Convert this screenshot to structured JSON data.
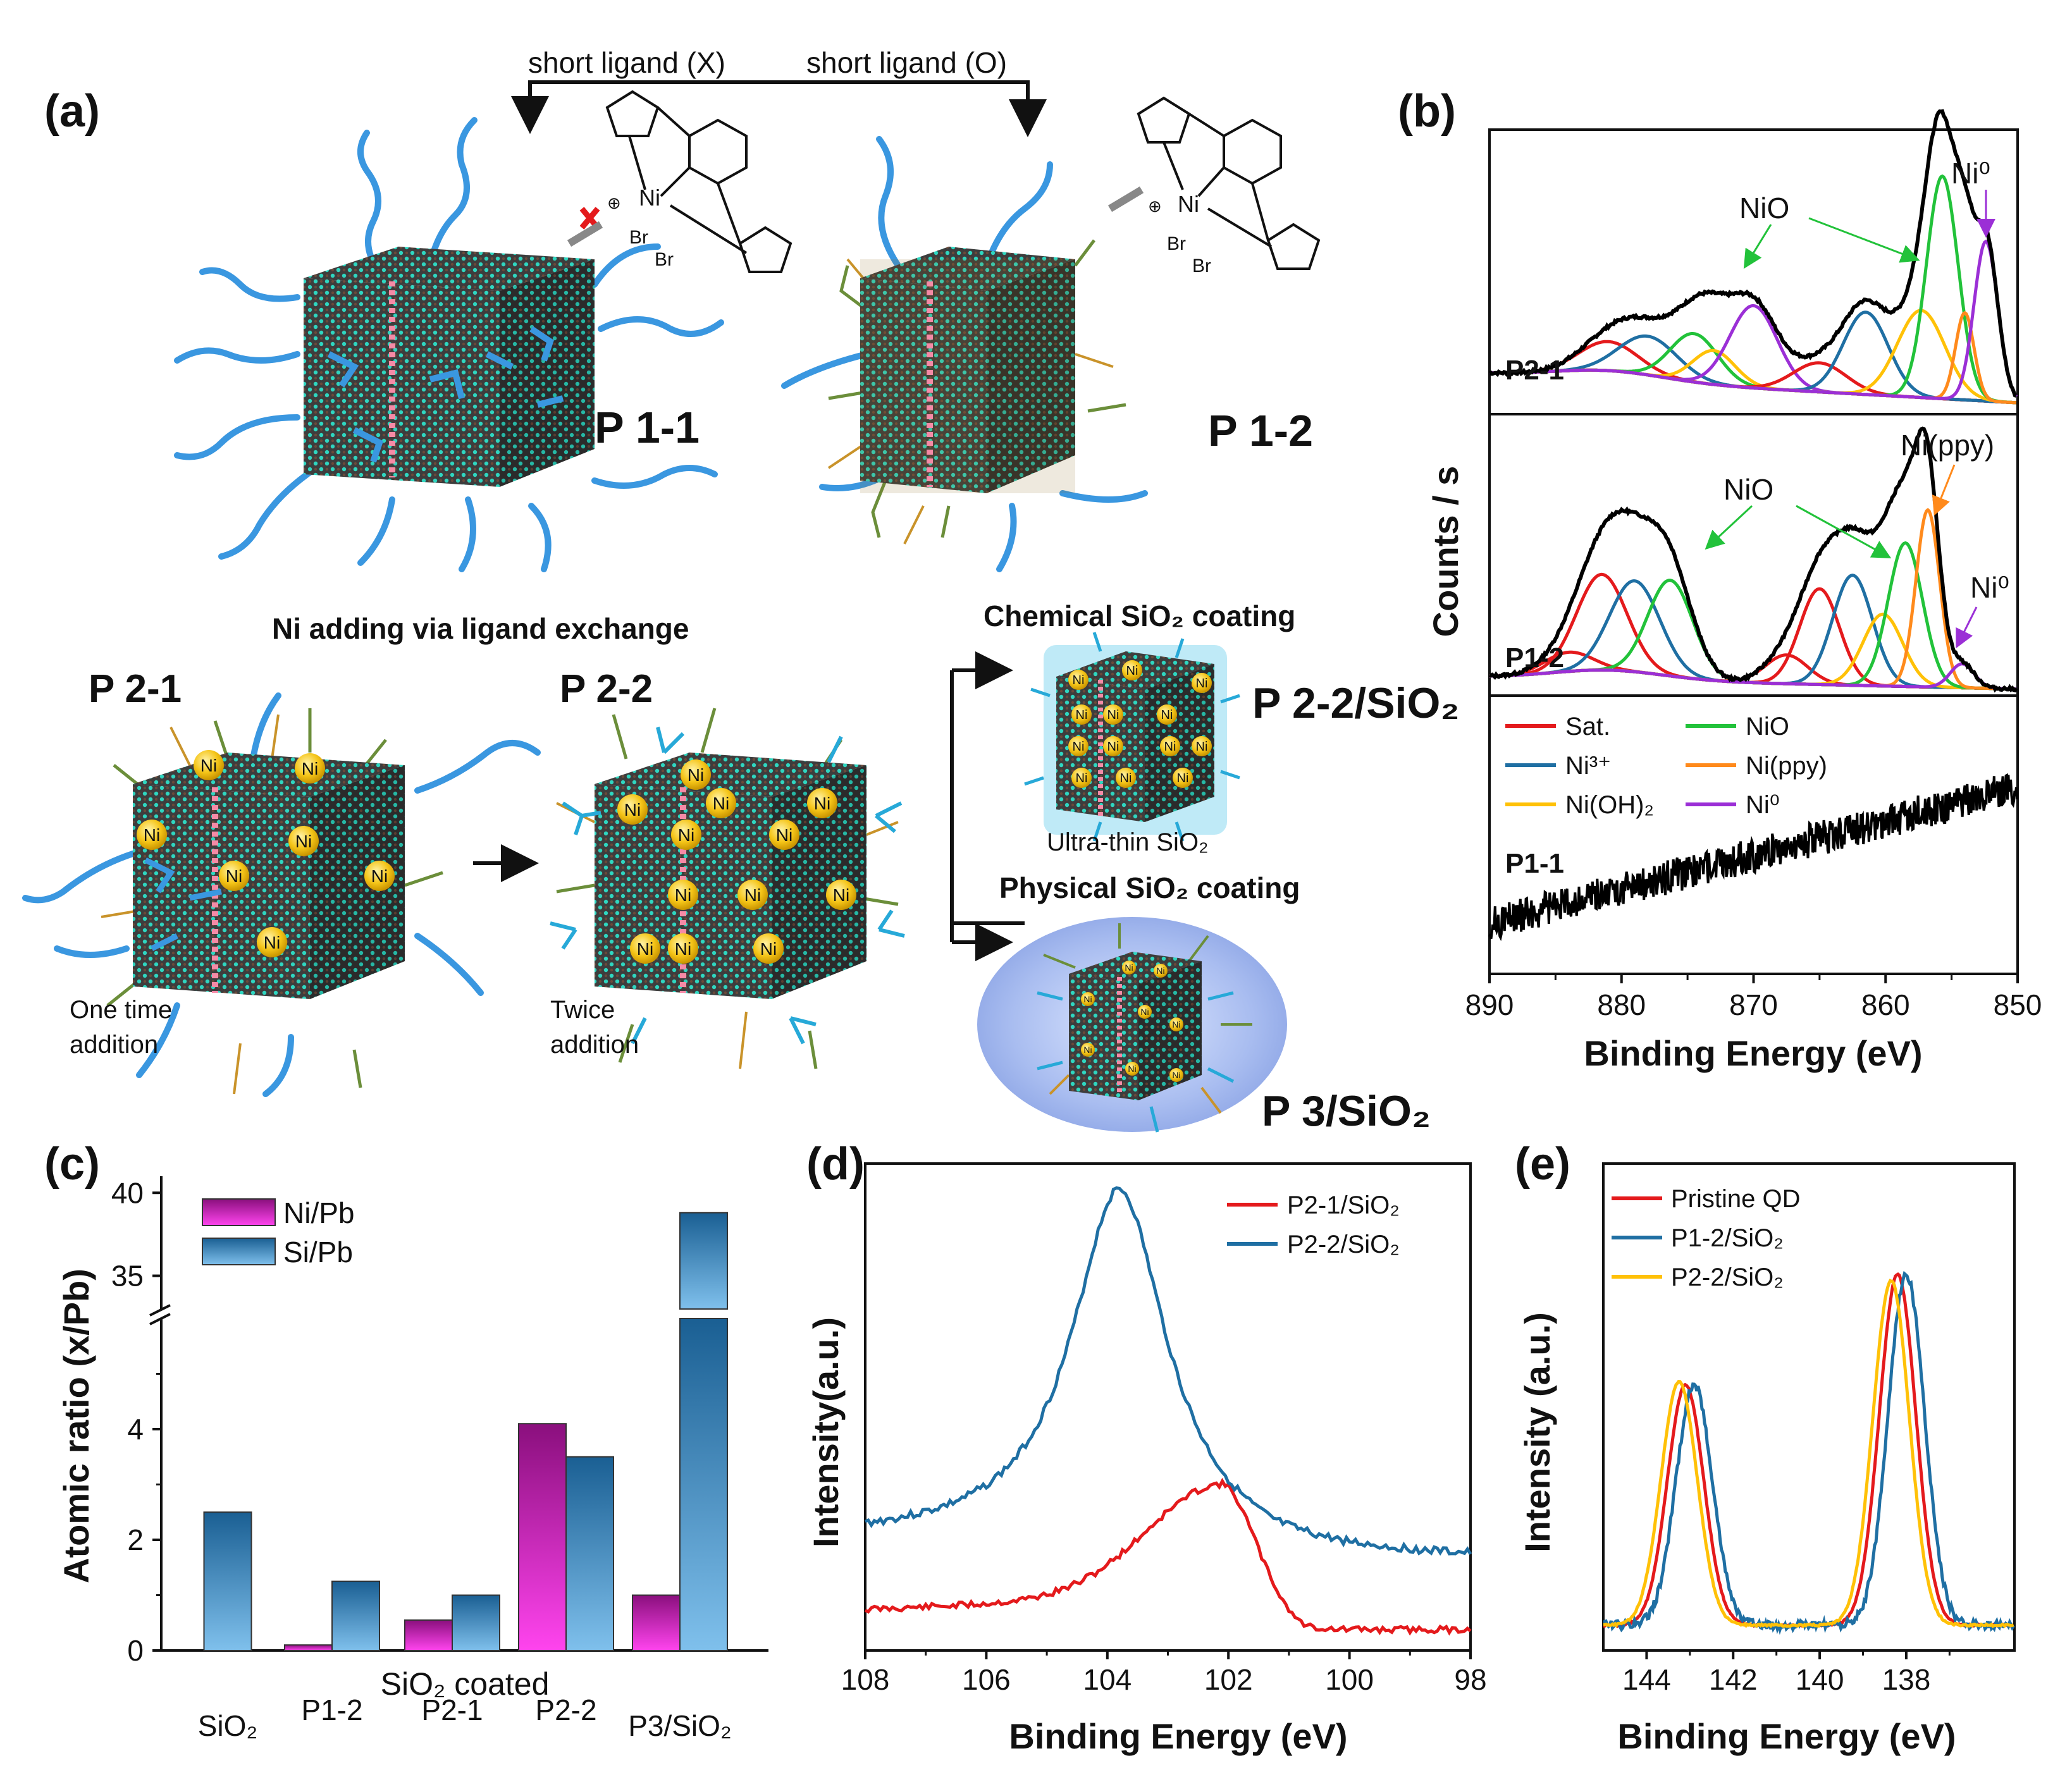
{
  "colors": {
    "ligand_blue": "#3a97e0",
    "qd_core": "#4a4a4a",
    "qd_dots": "#2fd6c0",
    "ni_ball": "#f5c518",
    "red": "#e41a1c",
    "dark_blue": "#1f6fa3",
    "green": "#22c23a",
    "orange": "#ff8a1c",
    "yellow": "#ffc107",
    "purple": "#9b2fd6",
    "black": "#000000",
    "magenta": "#e01ad0",
    "steel": "#3b8ec4"
  },
  "panel_a": {
    "letter": "(a)",
    "short_ligand_x": "short ligand (X)",
    "short_ligand_o": "short ligand (O)",
    "br1": "Br",
    "br2": "Br",
    "br3": "Br",
    "br4": "Br",
    "p11": "P 1-1",
    "p12": "P 1-2",
    "ni_adding": "Ni adding via ligand exchange",
    "p21": "P 2-1",
    "p22": "P 2-2",
    "one_time_1": "One time",
    "one_time_2": "addition",
    "twice_1": "Twice",
    "twice_2": "addition",
    "chem_coating": "Chemical SiO₂ coating",
    "ultra_thin": "Ultra-thin SiO₂",
    "phys_coating": "Physical SiO₂  coating",
    "p22_sio2": "P 2-2/SiO₂",
    "p3_sio2": "P 3/SiO₂",
    "ni_label": "Ni"
  },
  "panel_b": {
    "letter": "(b)",
    "sub1": "P2-1",
    "sub2": "P1-2",
    "sub3": "P1-1",
    "nio_1": "NiO",
    "ni0_1": "Ni⁰",
    "nio_2": "NiO",
    "nippy_2": "Ni(ppy)",
    "ni0_2": "Ni⁰"
  },
  "panel_c": {
    "letter": "(c)"
  },
  "panel_d": {
    "letter": "(d)"
  },
  "panel_e": {
    "letter": "(e)"
  },
  "chart_data": [
    {
      "id": "b",
      "type": "line",
      "title": "",
      "xlabel": "Binding Energy (eV)",
      "ylabel": "Counts / s",
      "xlim": [
        890,
        850
      ],
      "xticks": [
        890,
        880,
        870,
        860,
        850
      ],
      "tick_labels": [
        "890",
        "880",
        "870",
        "860",
        "850"
      ],
      "subpanels": [
        "P2-1",
        "P1-2",
        "P1-1"
      ],
      "legend": [
        {
          "name": "Sat.",
          "color": "#e41a1c"
        },
        {
          "name": "NiO",
          "color": "#22c23a"
        },
        {
          "name": "Ni³⁺",
          "color": "#1f6fa3"
        },
        {
          "name": "Ni(ppy)",
          "color": "#ff8a1c"
        },
        {
          "name": "Ni(OH)₂",
          "color": "#ffc107"
        },
        {
          "name": "Ni⁰",
          "color": "#9b2fd6"
        }
      ],
      "fits": {
        "P2-1": [
          {
            "component": "Sat.",
            "center": 881,
            "height": 0.12,
            "width": 2.2
          },
          {
            "component": "Ni³⁺",
            "center": 878,
            "height": 0.16,
            "width": 2.2
          },
          {
            "component": "NiO",
            "center": 874.5,
            "height": 0.2,
            "width": 1.8
          },
          {
            "component": "Ni(OH)₂",
            "center": 873,
            "height": 0.14,
            "width": 1.6
          },
          {
            "component": "Ni⁰",
            "center": 870,
            "height": 0.34,
            "width": 1.8
          },
          {
            "component": "Sat.",
            "center": 865,
            "height": 0.12,
            "width": 2.0
          },
          {
            "component": "Ni³⁺",
            "center": 861.5,
            "height": 0.34,
            "width": 1.7
          },
          {
            "component": "Ni(OH)₂",
            "center": 857.3,
            "height": 0.36,
            "width": 1.8
          },
          {
            "component": "NiO",
            "center": 855.7,
            "height": 0.92,
            "width": 1.2
          },
          {
            "component": "Ni(ppy)",
            "center": 854,
            "height": 0.36,
            "width": 0.7
          },
          {
            "component": "Ni⁰",
            "center": 852.4,
            "height": 0.66,
            "width": 0.9
          }
        ],
        "P1-2": [
          {
            "component": "Sat.",
            "center": 884,
            "height": 0.08,
            "width": 1.8
          },
          {
            "component": "Sat.",
            "center": 881.5,
            "height": 0.4,
            "width": 1.9
          },
          {
            "component": "Ni³⁺",
            "center": 879,
            "height": 0.38,
            "width": 1.9
          },
          {
            "component": "NiO",
            "center": 876.3,
            "height": 0.4,
            "width": 1.7
          },
          {
            "component": "Sat.",
            "center": 867.5,
            "height": 0.12,
            "width": 1.6
          },
          {
            "component": "Sat.",
            "center": 865,
            "height": 0.4,
            "width": 1.5
          },
          {
            "component": "Ni³⁺",
            "center": 862.5,
            "height": 0.46,
            "width": 1.5
          },
          {
            "component": "Ni(OH)₂",
            "center": 860.2,
            "height": 0.3,
            "width": 1.5
          },
          {
            "component": "NiO",
            "center": 858.5,
            "height": 0.6,
            "width": 1.3
          },
          {
            "component": "Ni(ppy)",
            "center": 856.8,
            "height": 0.74,
            "width": 0.9
          },
          {
            "component": "Ni⁰",
            "center": 854.2,
            "height": 0.1,
            "width": 0.9
          }
        ],
        "P1-1": "noisy background only, no Ni 2p peaks (rising from low at 890 eV to high at 850 eV)"
      }
    },
    {
      "id": "c",
      "type": "bar",
      "title": "",
      "xlabel": "SiO₂ coated",
      "ylabel": "Atomic ratio (x/Pb)",
      "categories": [
        "SiO₂",
        "P1-2",
        "P2-1",
        "P2-2",
        "P3/SiO₂"
      ],
      "series": [
        {
          "name": "Ni/Pb",
          "values": [
            null,
            0.1,
            0.55,
            4.1,
            1.0
          ]
        },
        {
          "name": "Si/Pb",
          "values": [
            2.5,
            1.25,
            1.0,
            3.5,
            38.8
          ]
        }
      ],
      "ylim_lower": [
        0,
        6
      ],
      "ylim_upper": [
        33,
        41
      ],
      "yticks_lower": [
        "0",
        "2",
        "4"
      ],
      "yticks_upper": [
        "35",
        "40"
      ],
      "axis_break": true
    },
    {
      "id": "d",
      "type": "line",
      "title": "",
      "xlabel": "Binding Energy (eV)",
      "ylabel": "Intensity(a.u.)",
      "xlim": [
        108,
        98
      ],
      "tick_labels": [
        "108",
        "106",
        "104",
        "102",
        "100",
        "98"
      ],
      "series": [
        {
          "name": "P2-1/SiO₂",
          "color": "#e41a1c",
          "peak": 102.1
        },
        {
          "name": "P2-2/SiO₂",
          "color": "#1f6fa3",
          "peak": 103.8
        }
      ]
    },
    {
      "id": "e",
      "type": "line",
      "title": "",
      "xlabel": "Binding Energy (eV)",
      "ylabel": "Intensity (a.u.)",
      "xlim": [
        145,
        135.5
      ],
      "tick_labels": [
        "144",
        "142",
        "140",
        "138"
      ],
      "series": [
        {
          "name": "Pristine QD",
          "color": "#e41a1c",
          "peaks": [
            143.1,
            138.2
          ]
        },
        {
          "name": "P1-2/SiO₂",
          "color": "#1f6fa3",
          "peaks": [
            142.9,
            138.0
          ]
        },
        {
          "name": "P2-2/SiO₂",
          "color": "#ffc107",
          "peaks": [
            143.25,
            138.35
          ]
        }
      ]
    }
  ]
}
